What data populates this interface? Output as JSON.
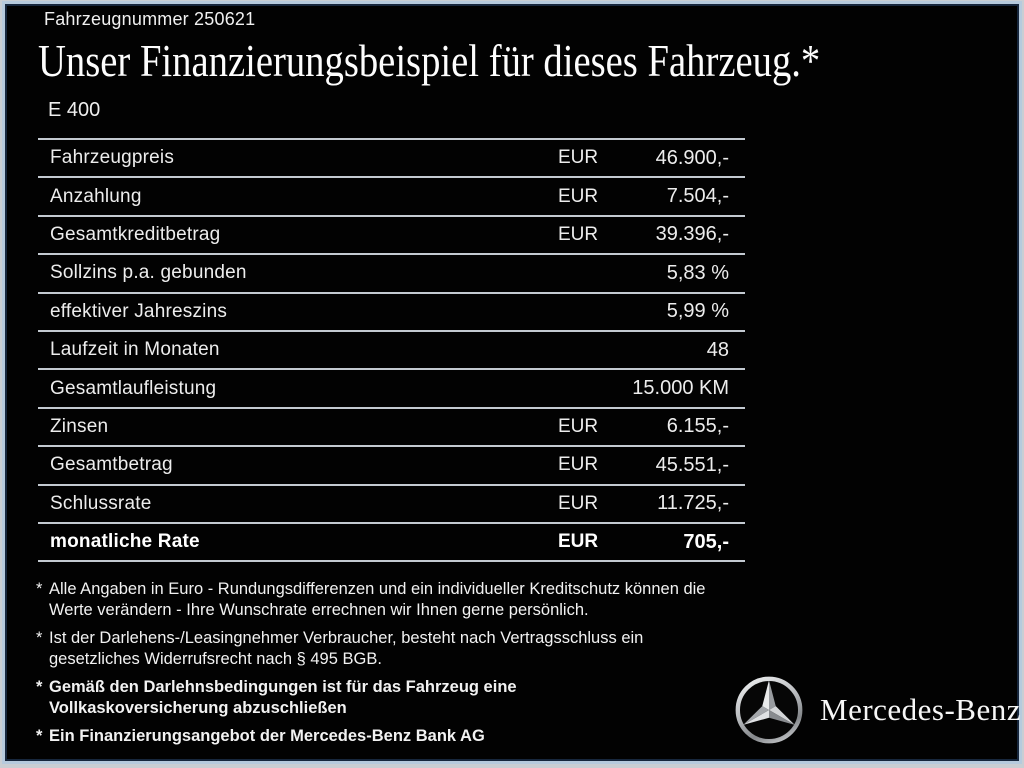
{
  "page": {
    "vehicle_number": "Fahrzeugnummer 250621",
    "title": "Unser Finanzierungsbeispiel für dieses Fahrzeug.*",
    "model": "E 400"
  },
  "table": {
    "rows": [
      {
        "label": "Fahrzeugpreis",
        "currency": "EUR",
        "value": "46.900,-",
        "bold": false
      },
      {
        "label": "Anzahlung",
        "currency": "EUR",
        "value": "7.504,-",
        "bold": false
      },
      {
        "label": "Gesamtkreditbetrag",
        "currency": "EUR",
        "value": "39.396,-",
        "bold": false
      },
      {
        "label": "Sollzins p.a. gebunden",
        "currency": "",
        "value": "5,83 %",
        "bold": false
      },
      {
        "label": "effektiver Jahreszins",
        "currency": "",
        "value": "5,99 %",
        "bold": false
      },
      {
        "label": "Laufzeit in Monaten",
        "currency": "",
        "value": "48",
        "bold": false
      },
      {
        "label": "Gesamtlaufleistung",
        "currency": "",
        "value": "15.000 KM",
        "bold": false
      },
      {
        "label": "Zinsen",
        "currency": "EUR",
        "value": "6.155,-",
        "bold": false
      },
      {
        "label": "Gesamtbetrag",
        "currency": "EUR",
        "value": "45.551,-",
        "bold": false
      },
      {
        "label": "Schlussrate",
        "currency": "EUR",
        "value": "11.725,-",
        "bold": false
      },
      {
        "label": "monatliche Rate",
        "currency": "EUR",
        "value": "705,-",
        "bold": true
      }
    ]
  },
  "footnotes": [
    {
      "marker": "*",
      "bold": false,
      "lines": [
        "Alle Angaben in Euro - Rundungsdifferenzen und ein individueller Kreditschutz können die",
        "Werte verändern - Ihre Wunschrate errechnen wir Ihnen gerne persönlich."
      ]
    },
    {
      "marker": "*",
      "bold": false,
      "lines": [
        "Ist der Darlehens-/Leasingnehmer Verbraucher, besteht nach Vertragsschluss ein",
        "gesetzliches Widerrufsrecht nach § 495 BGB."
      ]
    },
    {
      "marker": "*",
      "bold": true,
      "lines": [
        "Gemäß den Darlehnsbedingungen ist für das Fahrzeug eine",
        "Vollkaskoversicherung abzuschließen"
      ]
    },
    {
      "marker": "*",
      "bold": true,
      "lines": [
        "Ein Finanzierungsangebot der Mercedes-Benz Bank AG"
      ]
    }
  ],
  "brand": {
    "logo_icon": "mercedes-star-icon",
    "name": "Mercedes-Benz"
  },
  "colors": {
    "background": "#020202",
    "text": "#f0f0f0",
    "table_line": "#c3cad1",
    "frame_outer_gray": "#c9ced3",
    "frame_light_blue": "#b6cadd",
    "frame_dark_navy": "#17273d"
  }
}
